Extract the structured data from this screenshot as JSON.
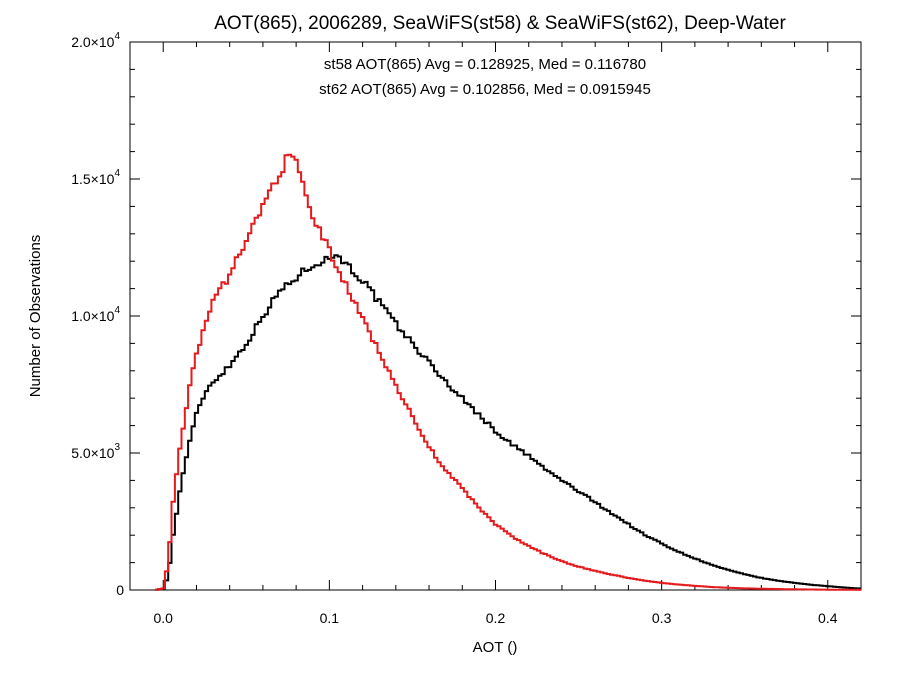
{
  "chart_data": {
    "type": "histogram-step",
    "title": "AOT(865), 2006289, SeaWiFS(st58) & SeaWiFS(st62), Deep-Water",
    "xlabel": "AOT ()",
    "ylabel": "Number of Observations",
    "xlim": [
      -0.02,
      0.42
    ],
    "ylim": [
      0,
      20000
    ],
    "grid": false,
    "x_ticks": [
      {
        "value": 0.0,
        "label": "0.0"
      },
      {
        "value": 0.1,
        "label": "0.1"
      },
      {
        "value": 0.2,
        "label": "0.2"
      },
      {
        "value": 0.3,
        "label": "0.3"
      },
      {
        "value": 0.4,
        "label": "0.4"
      }
    ],
    "y_ticks": [
      {
        "value": 0,
        "mant": "0",
        "exp": ""
      },
      {
        "value": 5000,
        "mant": "5.0×10",
        "exp": "3"
      },
      {
        "value": 10000,
        "mant": "1.0×10",
        "exp": "4"
      },
      {
        "value": 15000,
        "mant": "1.5×10",
        "exp": "4"
      },
      {
        "value": 20000,
        "mant": "2.0×10",
        "exp": "4"
      }
    ],
    "annotations": [
      {
        "text": "st58 AOT(865) Avg = 0.128925, Med = 0.116780",
        "color": "#000000"
      },
      {
        "text": "st62 AOT(865) Avg = 0.102856, Med = 0.0915945",
        "color": "#e41a1c"
      }
    ],
    "series": [
      {
        "color": "#000000",
        "x": [
          -0.005,
          0.0,
          0.003,
          0.006,
          0.01,
          0.015,
          0.02,
          0.025,
          0.03,
          0.04,
          0.05,
          0.06,
          0.07,
          0.08,
          0.09,
          0.1,
          0.105,
          0.11,
          0.12,
          0.13,
          0.14,
          0.15,
          0.16,
          0.17,
          0.18,
          0.19,
          0.2,
          0.21,
          0.22,
          0.23,
          0.24,
          0.25,
          0.26,
          0.27,
          0.28,
          0.29,
          0.3,
          0.31,
          0.32,
          0.33,
          0.34,
          0.35,
          0.36,
          0.37,
          0.38,
          0.39,
          0.4,
          0.41,
          0.42
        ],
        "y": [
          0,
          50,
          500,
          2000,
          3600,
          5200,
          6400,
          7200,
          7600,
          8200,
          9000,
          10000,
          10900,
          11400,
          11900,
          12100,
          12300,
          11900,
          11300,
          10500,
          9700,
          9000,
          8300,
          7600,
          7000,
          6400,
          5800,
          5300,
          4900,
          4400,
          4000,
          3600,
          3200,
          2800,
          2400,
          2000,
          1700,
          1400,
          1150,
          920,
          730,
          570,
          440,
          340,
          260,
          190,
          140,
          90,
          50
        ]
      },
      {
        "color": "#e41a1c",
        "x": [
          -0.005,
          0.0,
          0.003,
          0.006,
          0.01,
          0.015,
          0.02,
          0.025,
          0.03,
          0.04,
          0.05,
          0.06,
          0.065,
          0.07,
          0.075,
          0.08,
          0.085,
          0.09,
          0.1,
          0.11,
          0.12,
          0.13,
          0.14,
          0.15,
          0.16,
          0.17,
          0.18,
          0.19,
          0.2,
          0.21,
          0.22,
          0.23,
          0.24,
          0.25,
          0.26,
          0.27,
          0.28,
          0.29,
          0.3,
          0.31,
          0.32,
          0.33,
          0.34,
          0.35,
          0.36,
          0.37,
          0.38,
          0.39,
          0.4,
          0.41,
          0.42
        ],
        "y": [
          0,
          60,
          1000,
          3200,
          5200,
          7100,
          8600,
          9700,
          10500,
          11500,
          12800,
          14000,
          14700,
          15200,
          15800,
          15600,
          14600,
          13600,
          12400,
          11100,
          9900,
          8700,
          7500,
          6300,
          5200,
          4400,
          3700,
          3000,
          2400,
          1950,
          1600,
          1300,
          1050,
          850,
          700,
          560,
          440,
          340,
          260,
          200,
          150,
          110,
          80,
          60,
          45,
          35,
          25,
          18,
          12,
          8,
          5
        ]
      }
    ]
  }
}
